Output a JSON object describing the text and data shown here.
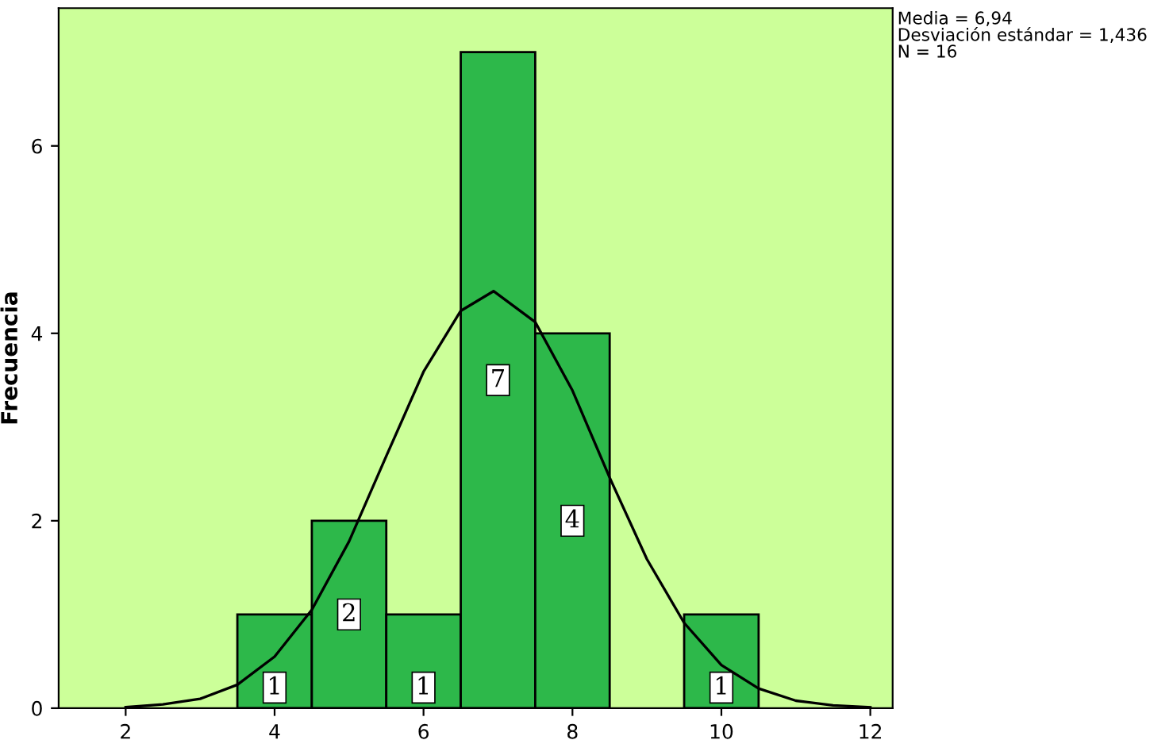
{
  "chart_data": {
    "type": "histogram",
    "ylabel": "Frecuencia",
    "bins": [
      3.5,
      4.5,
      5.5,
      6.5,
      7.5,
      8.5,
      9.5,
      10.5
    ],
    "values": [
      1,
      2,
      1,
      7,
      4,
      0,
      1
    ],
    "value_labels": [
      "1",
      "2",
      "1",
      "7",
      "4",
      null,
      "1"
    ],
    "color": "#2db84a",
    "series": [
      {
        "type": "line",
        "color": "#000000",
        "x": [
          2,
          2.5,
          3,
          3.5,
          4,
          4.5,
          5,
          5.5,
          6,
          6.5,
          6.94,
          7.5,
          8,
          8.5,
          9,
          9.5,
          10,
          10.5,
          11,
          11.5,
          12
        ],
        "values": [
          0.01,
          0.04,
          0.1,
          0.25,
          0.55,
          1.05,
          1.78,
          2.69,
          3.59,
          4.24,
          4.45,
          4.12,
          3.39,
          2.46,
          1.59,
          0.91,
          0.46,
          0.21,
          0.08,
          0.03,
          0.01
        ]
      }
    ],
    "annotations": [
      "Media = 6,94\nDesviación estándar = 1,436\nN = 16"
    ],
    "xlim": [
      1.1,
      12.3
    ],
    "ylim": [
      0,
      7.47
    ],
    "xticks": [
      2,
      4,
      6,
      8,
      10,
      12
    ],
    "yticks": [
      0,
      2,
      4,
      6
    ],
    "grid": false,
    "legend": false
  }
}
